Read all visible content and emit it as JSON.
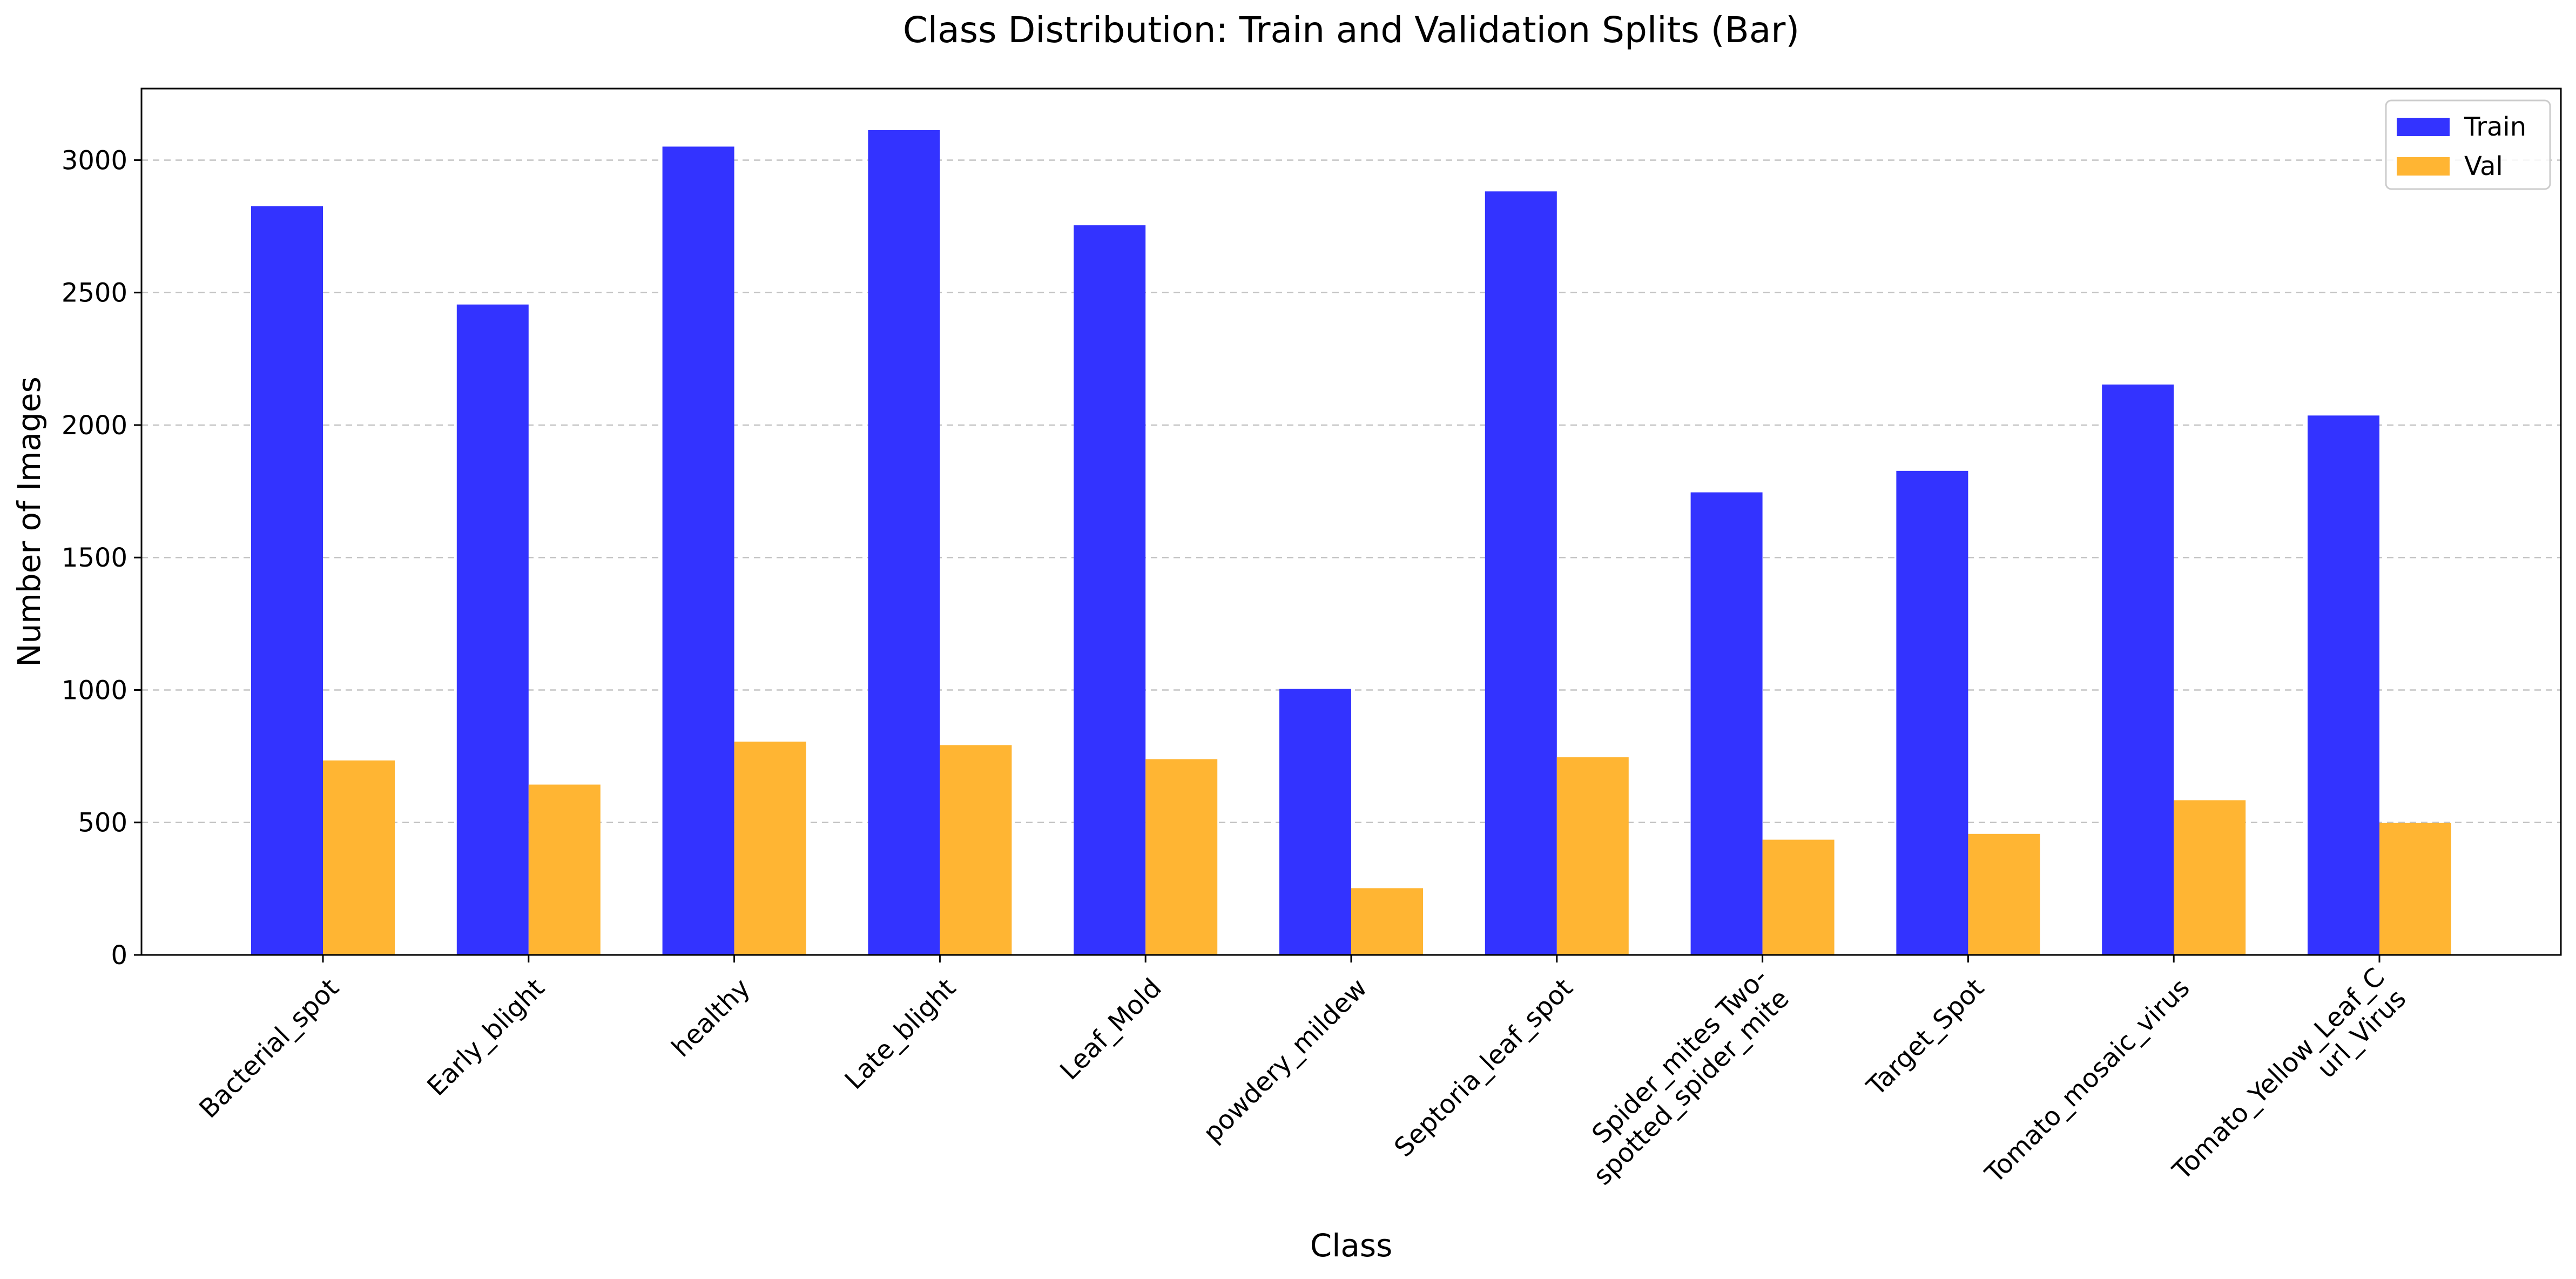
{
  "chart_data": {
    "type": "bar",
    "title": "Class Distribution: Train and Validation Splits (Bar)",
    "xlabel": "Class",
    "ylabel": "Number of Images",
    "categories": [
      "Bacterial_spot",
      "Early_blight",
      "healthy",
      "Late_blight",
      "Leaf_Mold",
      "powdery_mildew",
      "Septoria_leaf_spot",
      "Spider_mites Two-\nspotted_spider_mite",
      "Target_Spot",
      "Tomato_mosaic_virus",
      "Tomato_Yellow_Leaf_C\nurl_Virus"
    ],
    "series": [
      {
        "name": "Train",
        "color": "#3333ff",
        "values": [
          2826,
          2455,
          3051,
          3113,
          2754,
          1004,
          2882,
          1746,
          1827,
          2153,
          2036
        ]
      },
      {
        "name": "Val",
        "color": "#ffb533",
        "values": [
          734,
          643,
          805,
          792,
          739,
          252,
          746,
          435,
          457,
          584,
          498
        ]
      }
    ],
    "ylim": [
      0,
      3270
    ],
    "yticks": [
      0,
      500,
      1000,
      1500,
      2000,
      2500,
      3000
    ],
    "grid": "y-dashed",
    "legend": "top-right"
  }
}
